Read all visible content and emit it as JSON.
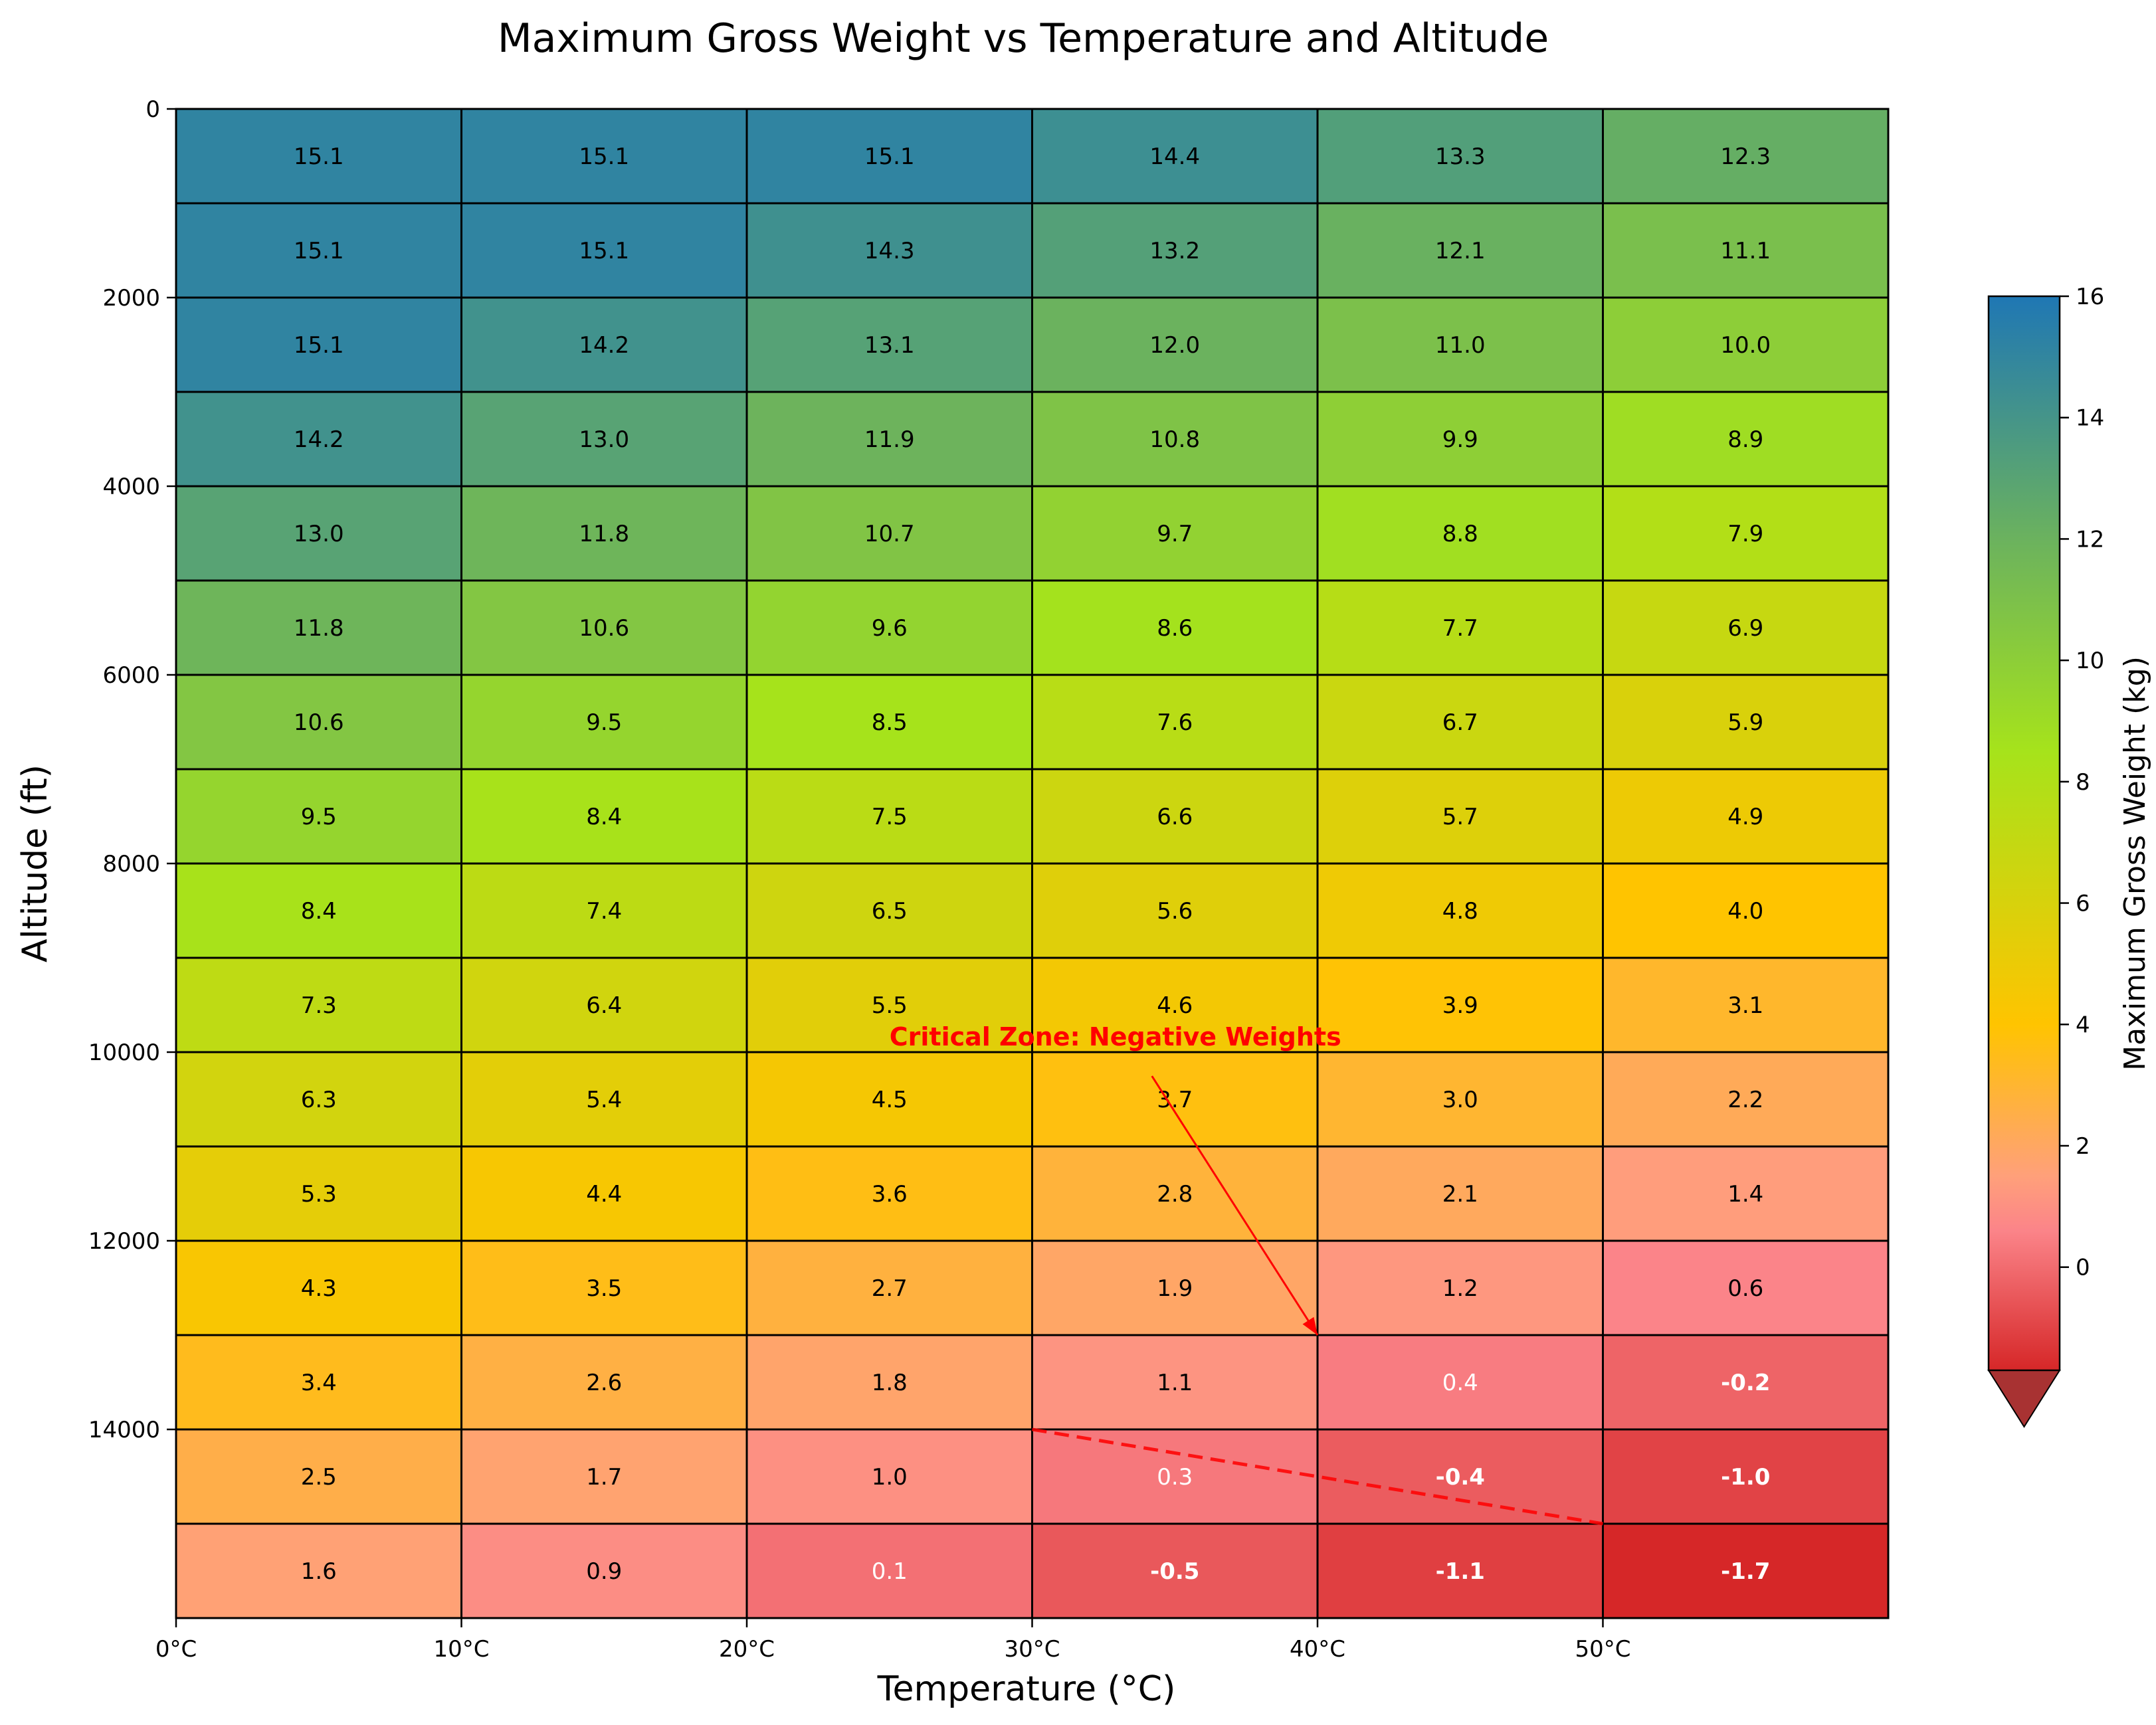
{
  "chart_data": {
    "type": "heatmap",
    "title": "Maximum Gross Weight vs Temperature and Altitude",
    "xlabel": "Temperature (°C)",
    "ylabel": "Altitude (ft)",
    "colorbar_label": "Maximum Gross Weight (kg)",
    "x_bins": [
      0,
      10,
      20,
      30,
      40,
      50,
      60
    ],
    "y_bins": [
      0,
      1000,
      2000,
      3000,
      4000,
      5000,
      6000,
      7000,
      8000,
      9000,
      10000,
      11000,
      12000,
      13000,
      14000,
      15000,
      16000
    ],
    "xlim": [
      0,
      60
    ],
    "ylim": [
      16000,
      0
    ],
    "x_ticks": [
      0,
      10,
      20,
      30,
      40,
      50
    ],
    "x_tick_labels": [
      "0°C",
      "10°C",
      "20°C",
      "30°C",
      "40°C",
      "50°C"
    ],
    "y_ticks": [
      0,
      2000,
      4000,
      6000,
      8000,
      10000,
      12000,
      14000
    ],
    "y_tick_labels": [
      "0",
      "2000",
      "4000",
      "6000",
      "8000",
      "10000",
      "12000",
      "14000"
    ],
    "colorbar_range": [
      -1.7,
      16
    ],
    "colorbar_ticks": [
      0,
      2,
      4,
      6,
      8,
      10,
      12,
      14,
      16
    ],
    "colorbar_tick_labels": [
      "0",
      "2",
      "4",
      "6",
      "8",
      "10",
      "12",
      "14",
      "16"
    ],
    "colorbar_extend": "min",
    "colorbar_stops": [
      {
        "v": -1.7,
        "c": "#d62728"
      },
      {
        "v": 0.6,
        "c": "#fb8489"
      },
      {
        "v": 1.5,
        "c": "#ffa07a"
      },
      {
        "v": 4.0,
        "c": "#ffc400"
      },
      {
        "v": 8.5,
        "c": "#a6e31b"
      },
      {
        "v": 12.0,
        "c": "#6bb25e"
      },
      {
        "v": 16.0,
        "c": "#1f77b4"
      }
    ],
    "under_color": "#a83232",
    "values": [
      [
        15.1,
        15.1,
        15.1,
        14.4,
        13.3,
        12.3
      ],
      [
        15.1,
        15.1,
        14.3,
        13.2,
        12.1,
        11.1
      ],
      [
        15.1,
        14.2,
        13.1,
        12.0,
        11.0,
        10.0
      ],
      [
        14.2,
        13.0,
        11.9,
        10.8,
        9.9,
        8.9
      ],
      [
        13.0,
        11.8,
        10.7,
        9.7,
        8.8,
        7.9
      ],
      [
        11.8,
        10.6,
        9.6,
        8.6,
        7.7,
        6.9
      ],
      [
        10.6,
        9.5,
        8.5,
        7.6,
        6.7,
        5.9
      ],
      [
        9.5,
        8.4,
        7.5,
        6.6,
        5.7,
        4.9
      ],
      [
        8.4,
        7.4,
        6.5,
        5.6,
        4.8,
        4.0
      ],
      [
        7.3,
        6.4,
        5.5,
        4.6,
        3.9,
        3.1
      ],
      [
        6.3,
        5.4,
        4.5,
        3.7,
        3.0,
        2.2
      ],
      [
        5.3,
        4.4,
        3.6,
        2.8,
        2.1,
        1.4
      ],
      [
        4.3,
        3.5,
        2.7,
        1.9,
        1.2,
        0.6
      ],
      [
        3.4,
        2.6,
        1.8,
        1.1,
        0.4,
        -0.2
      ],
      [
        2.5,
        1.7,
        1.0,
        0.3,
        -0.4,
        -1.0
      ],
      [
        1.6,
        0.9,
        0.1,
        -0.5,
        -1.1,
        -1.7
      ]
    ],
    "annotation": {
      "text": "Critical Zone: Negative Weights",
      "color": "#ff0000",
      "text_xy": [
        25,
        10000
      ],
      "arrow_xy": [
        40,
        13000
      ]
    },
    "boundary_line": {
      "color": "#ff0000",
      "style": "dashed",
      "points": [
        [
          30,
          14000
        ],
        [
          50,
          15000
        ]
      ]
    }
  }
}
